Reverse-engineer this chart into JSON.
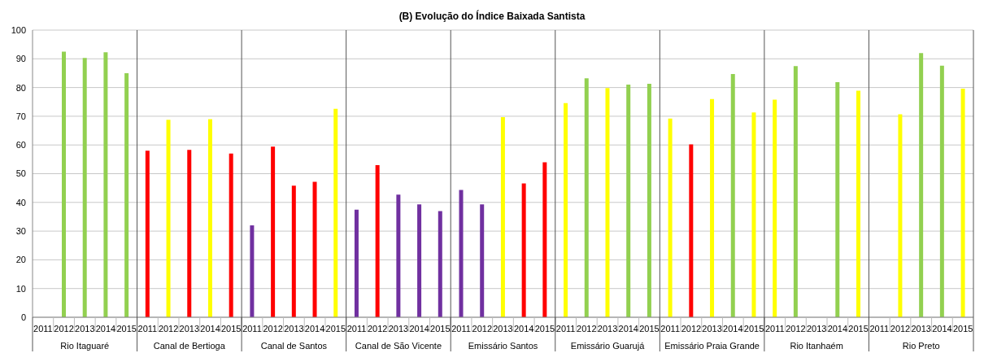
{
  "chart_data": {
    "type": "bar",
    "title": "(B)  Evolução do Índice Baixada Santista",
    "categories": [
      "2011",
      "2012",
      "2013",
      "2014",
      "2015",
      "2011",
      "2012",
      "2013",
      "2014",
      "2015",
      "2011",
      "2012",
      "2013",
      "2014",
      "2015",
      "2011",
      "2012",
      "2013",
      "2014",
      "2015",
      "2011",
      "2012",
      "2013",
      "2014",
      "2015",
      "2011",
      "2012",
      "2013",
      "2014",
      "2015",
      "2011",
      "2012",
      "2013",
      "2014",
      "2015",
      "2011",
      "2012",
      "2013",
      "2014",
      "2015",
      "2011",
      "2012",
      "2013",
      "2014",
      "2015"
    ],
    "values": [
      null,
      92.5,
      90.3,
      92.3,
      85,
      58,
      68.8,
      58.3,
      69,
      57,
      32,
      59.4,
      45.8,
      47.2,
      72.6,
      37.5,
      53,
      42.7,
      39.3,
      37,
      44.3,
      39.3,
      69.7,
      46.6,
      54,
      74.6,
      83.2,
      79.8,
      81,
      81.3,
      69.2,
      60.2,
      76,
      84.7,
      71.3,
      75.8,
      87.5,
      null,
      81.9,
      78.9,
      null,
      70.7,
      92,
      87.6,
      79.6
    ],
    "colors": [
      "#92d050",
      "#92d050",
      "#92d050",
      "#92d050",
      "#92d050",
      "#ff0000",
      "#ffff00",
      "#ff0000",
      "#ffff00",
      "#ff0000",
      "#7030a0",
      "#ff0000",
      "#ff0000",
      "#ff0000",
      "#ffff00",
      "#7030a0",
      "#ff0000",
      "#7030a0",
      "#7030a0",
      "#7030a0",
      "#7030a0",
      "#7030a0",
      "#ffff00",
      "#ff0000",
      "#ff0000",
      "#ffff00",
      "#92d050",
      "#ffff00",
      "#92d050",
      "#92d050",
      "#ffff00",
      "#ff0000",
      "#ffff00",
      "#92d050",
      "#ffff00",
      "#ffff00",
      "#92d050",
      "#92d050",
      "#92d050",
      "#ffff00",
      "#92d050",
      "#ffff00",
      "#92d050",
      "#92d050",
      "#ffff00"
    ],
    "annotations": [
      "Rio Itaguaré",
      "Canal de Bertioga",
      "Canal de Santos",
      "Canal de São Vicente",
      "Emissário Santos",
      "Emissário Guarujá",
      "Emissário Praia Grande",
      "Rio Itanhaém",
      "Rio Preto"
    ],
    "ylim": [
      0,
      100
    ],
    "yticks": [
      0,
      10,
      20,
      30,
      40,
      50,
      60,
      70,
      80,
      90,
      100
    ],
    "grid": "y"
  }
}
